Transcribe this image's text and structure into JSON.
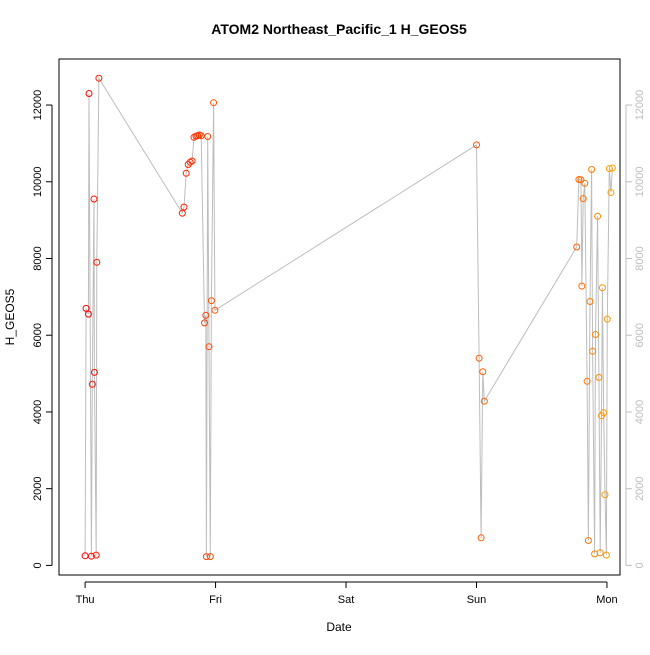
{
  "chart_data": {
    "type": "scatter",
    "title": "ATOM2 Northeast_Pacific_1 H_GEOS5",
    "xlabel": "Date",
    "ylabel": "H_GEOS5",
    "x_unit": "days since Thu 00:00",
    "xlim": [
      -0.2,
      4.1
    ],
    "ylim": [
      -250,
      13200
    ],
    "x_ticks": [
      {
        "value": 0,
        "label": "Thu"
      },
      {
        "value": 1,
        "label": "Fri"
      },
      {
        "value": 2,
        "label": "Sat"
      },
      {
        "value": 3,
        "label": "Sun"
      },
      {
        "value": 4,
        "label": "Mon"
      }
    ],
    "y_ticks": [
      0,
      2000,
      4000,
      6000,
      8000,
      10000,
      12000
    ],
    "grid": false,
    "legend": "none",
    "connector_color": "#bdbdbd",
    "series": [
      {
        "color_start": "#ff0000",
        "color_end": "#ffa500",
        "points": [
          [
            0.0,
            250
          ],
          [
            0.008,
            6700
          ],
          [
            0.025,
            6550
          ],
          [
            0.03,
            12300
          ],
          [
            0.048,
            240
          ],
          [
            0.055,
            4720
          ],
          [
            0.068,
            9550
          ],
          [
            0.071,
            5030
          ],
          [
            0.085,
            270
          ],
          [
            0.09,
            7900
          ],
          [
            0.106,
            12700
          ],
          [
            0.745,
            9180
          ],
          [
            0.758,
            9340
          ],
          [
            0.775,
            10220
          ],
          [
            0.79,
            10450
          ],
          [
            0.806,
            10510
          ],
          [
            0.82,
            10540
          ],
          [
            0.835,
            11160
          ],
          [
            0.85,
            11190
          ],
          [
            0.862,
            11200
          ],
          [
            0.875,
            11220
          ],
          [
            0.89,
            11200
          ],
          [
            0.915,
            6320
          ],
          [
            0.925,
            6520
          ],
          [
            0.93,
            230
          ],
          [
            0.94,
            11180
          ],
          [
            0.95,
            5700
          ],
          [
            0.96,
            230
          ],
          [
            0.968,
            6900
          ],
          [
            0.985,
            12060
          ],
          [
            0.995,
            6650
          ],
          [
            3.0,
            10960
          ],
          [
            3.02,
            5400
          ],
          [
            3.035,
            720
          ],
          [
            3.048,
            5050
          ],
          [
            3.06,
            4280
          ],
          [
            3.768,
            8300
          ],
          [
            3.785,
            10060
          ],
          [
            3.8,
            10050
          ],
          [
            3.808,
            7280
          ],
          [
            3.818,
            9560
          ],
          [
            3.83,
            9960
          ],
          [
            3.848,
            4800
          ],
          [
            3.858,
            650
          ],
          [
            3.87,
            6880
          ],
          [
            3.882,
            10320
          ],
          [
            3.89,
            5580
          ],
          [
            3.905,
            300
          ],
          [
            3.912,
            6020
          ],
          [
            3.928,
            9100
          ],
          [
            3.938,
            4900
          ],
          [
            3.948,
            330
          ],
          [
            3.958,
            3900
          ],
          [
            3.965,
            7240
          ],
          [
            3.975,
            3980
          ],
          [
            3.985,
            1840
          ],
          [
            3.996,
            270
          ],
          [
            4.003,
            6420
          ],
          [
            4.018,
            10340
          ],
          [
            4.03,
            9720
          ],
          [
            4.042,
            10360
          ]
        ]
      }
    ]
  }
}
